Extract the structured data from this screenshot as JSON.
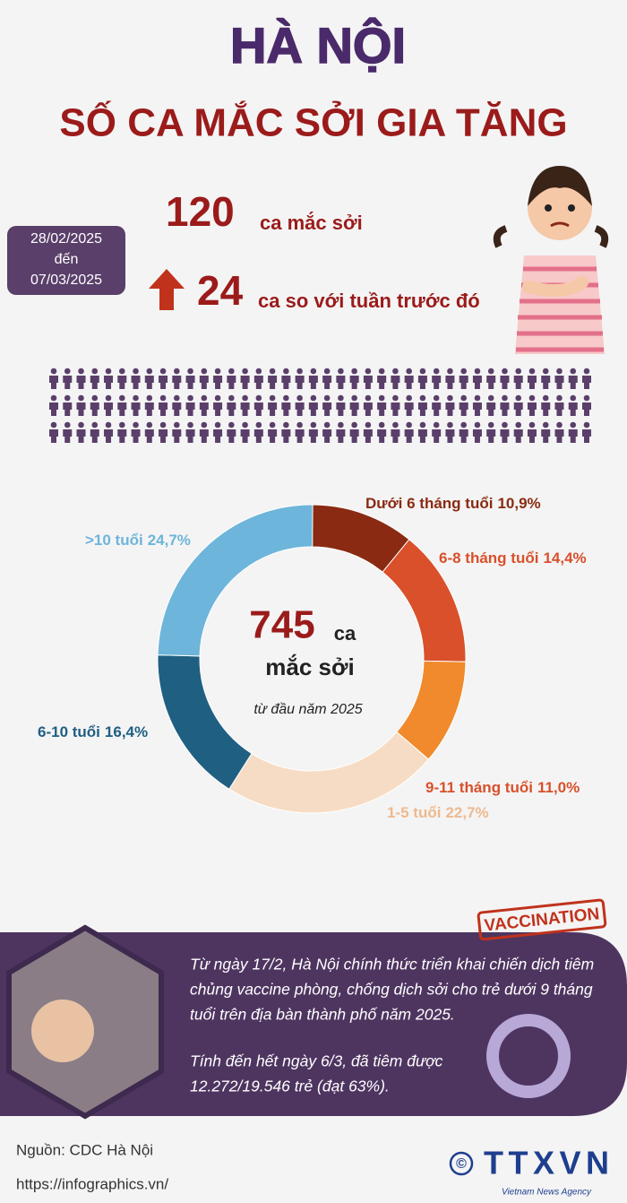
{
  "header": {
    "title": "HÀ NỘI",
    "subtitle": "SỐ CA MẮC SỞI GIA TĂNG"
  },
  "period": {
    "from": "28/02/2025",
    "word": "đến",
    "to": "07/03/2025"
  },
  "stats": {
    "cases": 120,
    "cases_label": "ca mắc sởi",
    "increase": 24,
    "increase_label": "ca so với tuần trước đó"
  },
  "chart_data": {
    "type": "donut",
    "total": 745,
    "total_unit": "ca",
    "total_label": "mắc sởi",
    "total_note": "từ đầu năm 2025",
    "categories": [
      "Dưới 6 tháng tuổi",
      "6-8 tháng tuổi",
      "9-11 tháng tuổi",
      "1-5 tuổi",
      "6-10 tuổi",
      ">10 tuổi"
    ],
    "values": [
      10.9,
      14.4,
      11.0,
      22.7,
      16.4,
      24.7
    ],
    "value_labels": [
      "10,9%",
      "14,4%",
      "11,0%",
      "22,7%",
      "16,4%",
      "24,7%"
    ],
    "colors": [
      "#8a2a12",
      "#d9502b",
      "#f08a2c",
      "#f6dcc4",
      "#1f5f82",
      "#6db5da"
    ],
    "label_colors": [
      "#8a2a12",
      "#d9502b",
      "#d9502b",
      "#eeb98f",
      "#1f5f82",
      "#6db5da"
    ]
  },
  "vaccination": {
    "stamp": "VACCINATION",
    "paragraphs": [
      [
        "Từ ngày 17/2, Hà Nội chính thức triển khai chiến dịch tiêm",
        "chủng vaccine phòng, chống dịch sởi cho trẻ dưới 9 tháng",
        "tuổi trên địa bàn thành phố năm 2025."
      ],
      [
        "Tính đến hết ngày 6/3, đã tiêm được",
        "12.272/19.546 trẻ (đạt 63%)."
      ]
    ]
  },
  "footer": {
    "source": "Nguồn: CDC Hà Nội",
    "url": "https://infographics.vn/",
    "copyright": "©",
    "logo": "TTXVN",
    "agency": "Vietnam News Agency"
  }
}
